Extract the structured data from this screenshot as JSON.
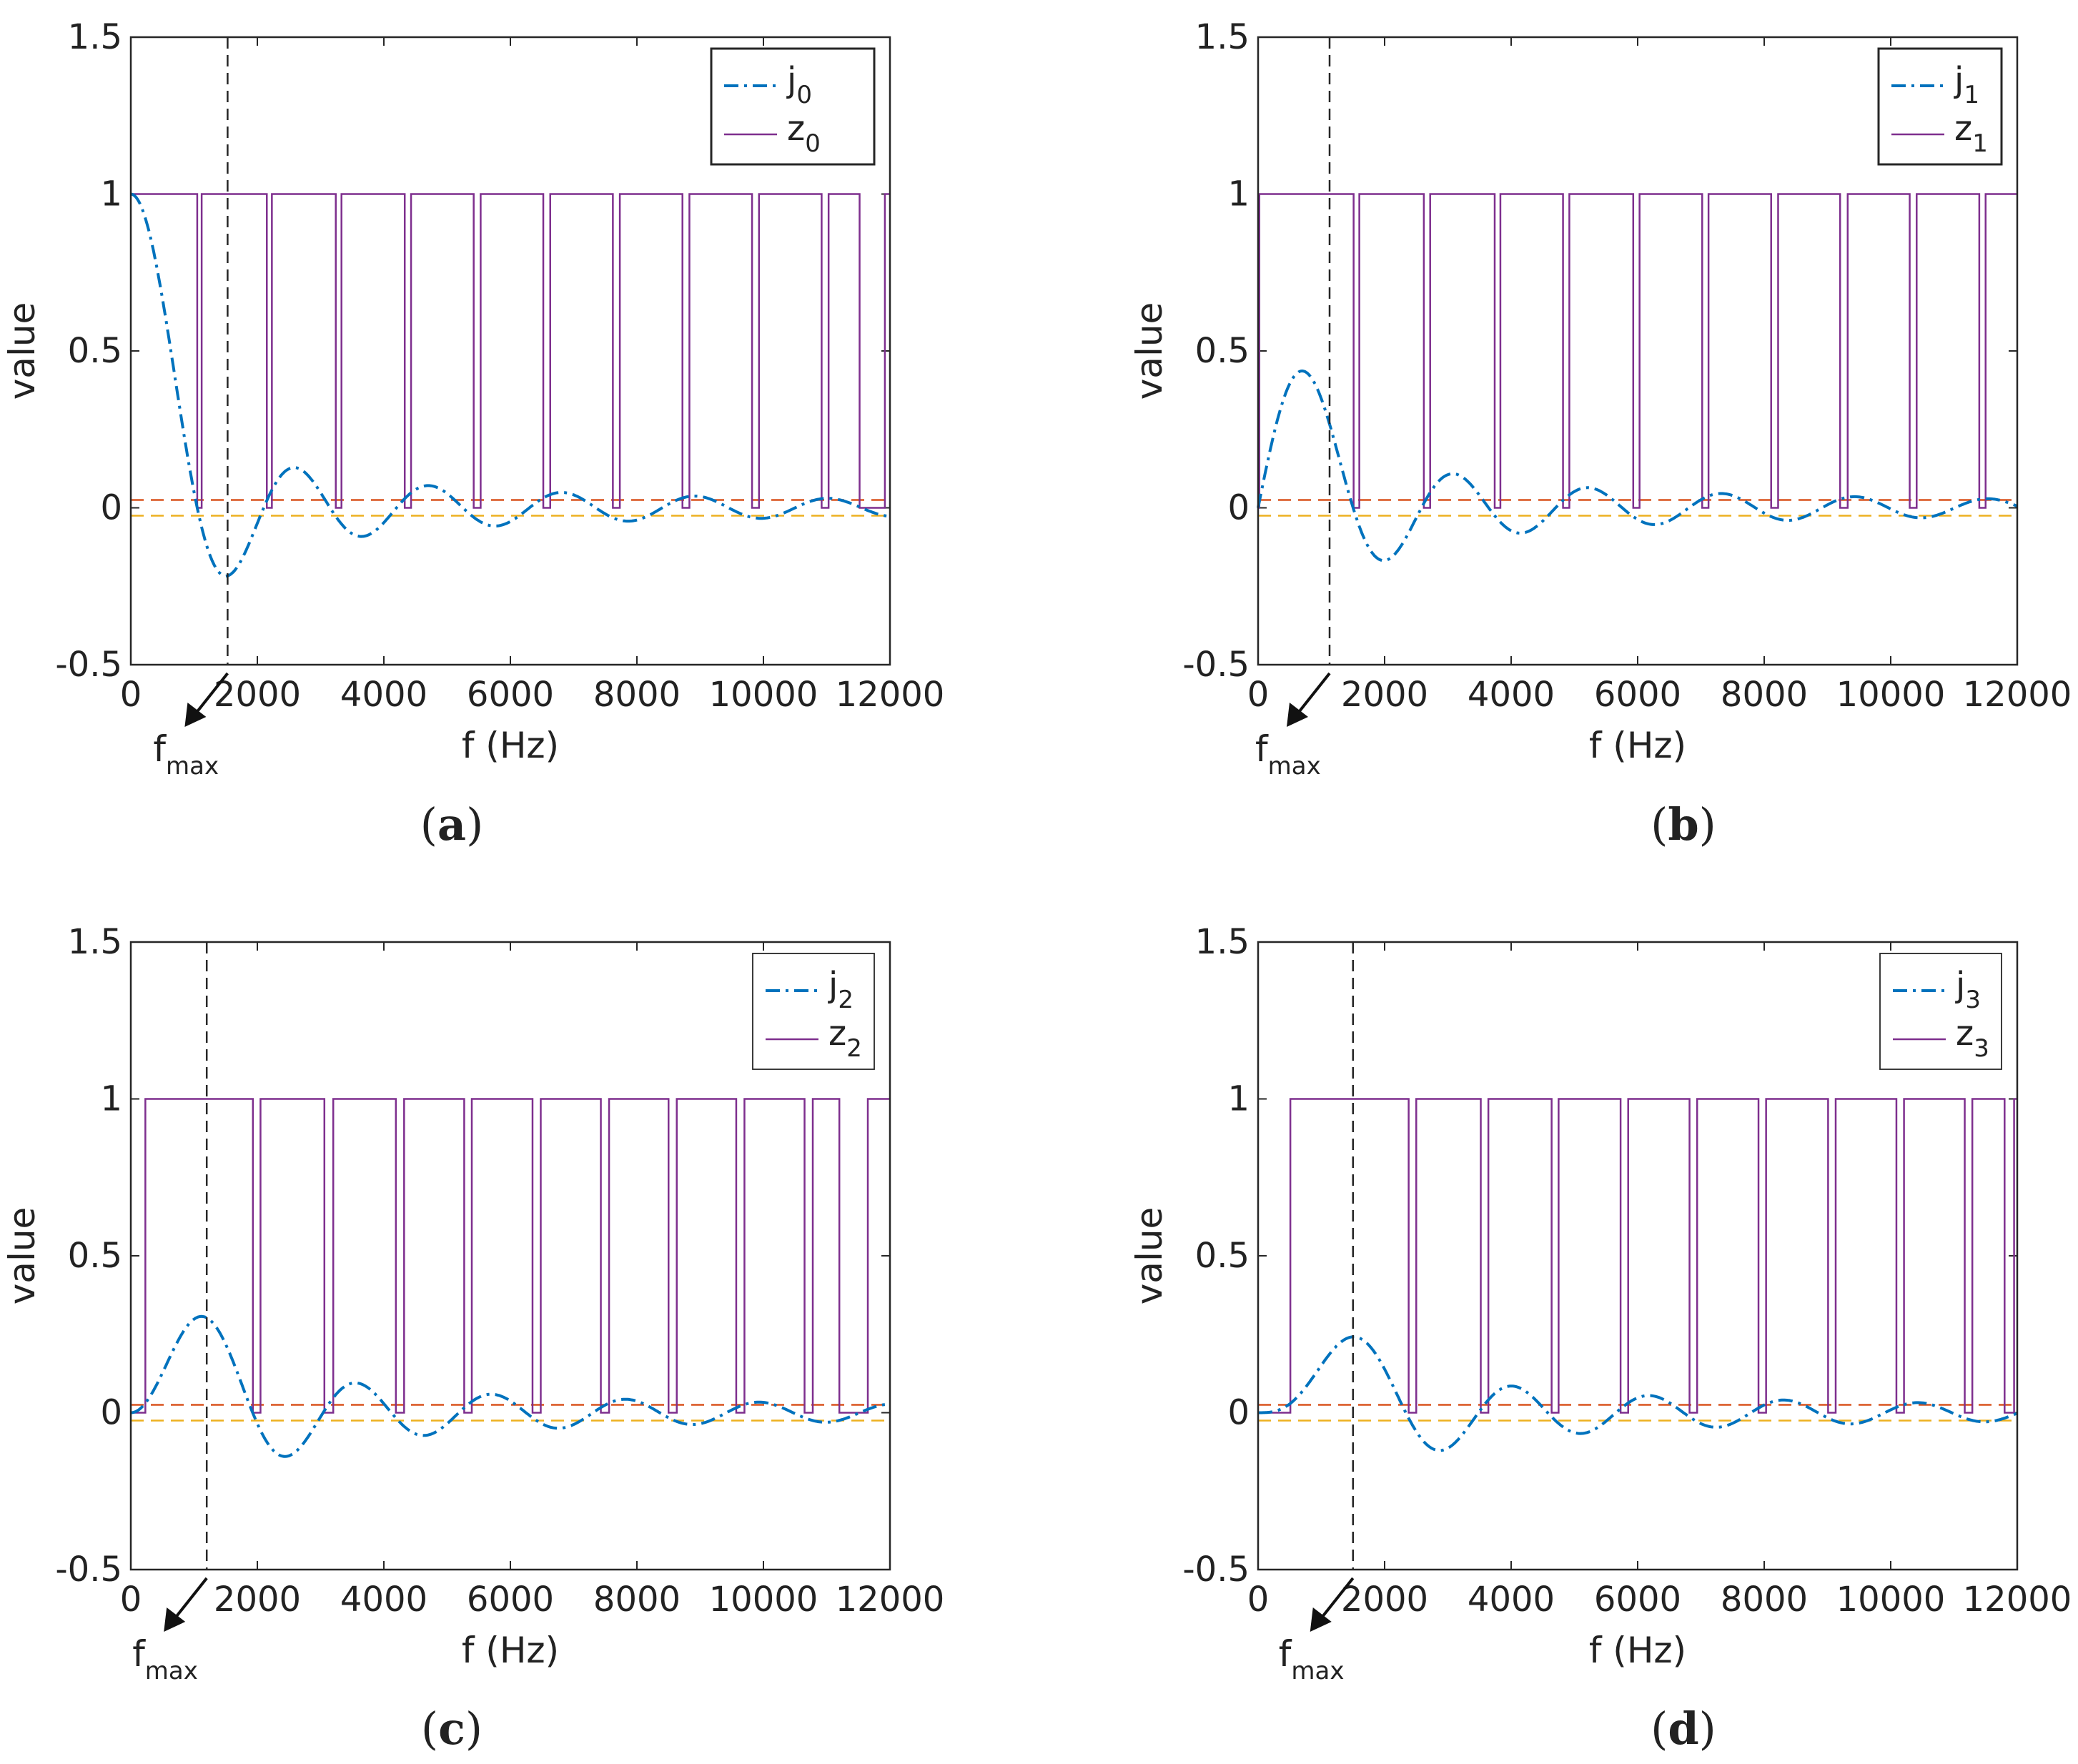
{
  "chart_data": [
    {
      "type": "line",
      "panel": "a",
      "caption": "a",
      "xlabel": "f (Hz)",
      "ylabel": "value",
      "xlim": [
        0,
        12000
      ],
      "ylim": [
        -0.5,
        1.5
      ],
      "xticks": [
        "0",
        "2000",
        "4000",
        "6000",
        "8000",
        "10000",
        "12000"
      ],
      "yticks": [
        "-0.5",
        "0",
        "0.5",
        "1",
        "1.5"
      ],
      "order": 0,
      "fmax": 1530,
      "fmax_label": "f",
      "fmax_sub": "max",
      "thresholds": {
        "upper": 0.025,
        "lower": -0.025,
        "upper_color": "#d9531e",
        "lower_color": "#edb120"
      },
      "series": [
        {
          "name": "j",
          "sub": "0",
          "style": "dash-dot",
          "color": "#0072bd",
          "function": "spherical_bessel_j0"
        },
        {
          "name": "z",
          "sub": "0",
          "style": "solid",
          "color": "#7e2f8e",
          "steps": [
            [
              0,
              1
            ],
            [
              1050,
              0
            ],
            [
              1120,
              1
            ],
            [
              2150,
              0
            ],
            [
              2230,
              1
            ],
            [
              3240,
              0
            ],
            [
              3330,
              1
            ],
            [
              4330,
              0
            ],
            [
              4430,
              1
            ],
            [
              5420,
              0
            ],
            [
              5530,
              1
            ],
            [
              6520,
              0
            ],
            [
              6630,
              1
            ],
            [
              7620,
              0
            ],
            [
              7730,
              1
            ],
            [
              8720,
              0
            ],
            [
              8830,
              1
            ],
            [
              9820,
              0
            ],
            [
              9930,
              1
            ],
            [
              10920,
              0
            ],
            [
              11030,
              1
            ],
            [
              11520,
              0
            ],
            [
              11920,
              1
            ],
            [
              12000,
              1
            ]
          ]
        }
      ]
    },
    {
      "type": "line",
      "panel": "b",
      "caption": "b",
      "xlabel": "f (Hz)",
      "ylabel": "value",
      "xlim": [
        0,
        12000
      ],
      "ylim": [
        -0.5,
        1.5
      ],
      "xticks": [
        "0",
        "2000",
        "4000",
        "6000",
        "8000",
        "10000",
        "12000"
      ],
      "yticks": [
        "-0.5",
        "0",
        "0.5",
        "1",
        "1.5"
      ],
      "order": 1,
      "fmax": 1130,
      "fmax_label": "f",
      "fmax_sub": "max",
      "thresholds": {
        "upper": 0.025,
        "lower": -0.025,
        "upper_color": "#d9531e",
        "lower_color": "#edb120"
      },
      "series": [
        {
          "name": "j",
          "sub": "1",
          "style": "dash-dot",
          "color": "#0072bd",
          "function": "spherical_bessel_j1"
        },
        {
          "name": "z",
          "sub": "1",
          "style": "solid",
          "color": "#7e2f8e",
          "steps": [
            [
              0,
              0
            ],
            [
              20,
              1
            ],
            [
              1510,
              0
            ],
            [
              1600,
              1
            ],
            [
              2620,
              0
            ],
            [
              2720,
              1
            ],
            [
              3740,
              0
            ],
            [
              3830,
              1
            ],
            [
              4820,
              0
            ],
            [
              4920,
              1
            ],
            [
              5930,
              0
            ],
            [
              6030,
              1
            ],
            [
              7020,
              0
            ],
            [
              7120,
              1
            ],
            [
              8110,
              0
            ],
            [
              8220,
              1
            ],
            [
              9200,
              0
            ],
            [
              9320,
              1
            ],
            [
              10300,
              0
            ],
            [
              10410,
              1
            ],
            [
              11400,
              0
            ],
            [
              11500,
              1
            ],
            [
              12000,
              1
            ]
          ]
        }
      ]
    },
    {
      "type": "line",
      "panel": "c",
      "caption": "c",
      "xlabel": "f (Hz)",
      "ylabel": "value",
      "xlim": [
        0,
        12000
      ],
      "ylim": [
        -0.5,
        1.5
      ],
      "xticks": [
        "0",
        "2000",
        "4000",
        "6000",
        "8000",
        "10000",
        "12000"
      ],
      "yticks": [
        "-0.5",
        "0",
        "0.5",
        "1",
        "1.5"
      ],
      "order": 2,
      "fmax": 1200,
      "fmax_label": "f",
      "fmax_sub": "max",
      "thresholds": {
        "upper": 0.025,
        "lower": -0.025,
        "upper_color": "#d9531e",
        "lower_color": "#edb120"
      },
      "series": [
        {
          "name": "j",
          "sub": "2",
          "style": "dash-dot",
          "color": "#0072bd",
          "function": "spherical_bessel_j2"
        },
        {
          "name": "z",
          "sub": "2",
          "style": "solid",
          "color": "#7e2f8e",
          "steps": [
            [
              0,
              0
            ],
            [
              230,
              1
            ],
            [
              1930,
              0
            ],
            [
              2050,
              1
            ],
            [
              3060,
              0
            ],
            [
              3200,
              1
            ],
            [
              4190,
              0
            ],
            [
              4320,
              1
            ],
            [
              5270,
              0
            ],
            [
              5390,
              1
            ],
            [
              6350,
              0
            ],
            [
              6480,
              1
            ],
            [
              7430,
              0
            ],
            [
              7560,
              1
            ],
            [
              8500,
              0
            ],
            [
              8630,
              1
            ],
            [
              9570,
              0
            ],
            [
              9700,
              1
            ],
            [
              10650,
              0
            ],
            [
              10780,
              1
            ],
            [
              11200,
              0
            ],
            [
              11650,
              1
            ],
            [
              12000,
              1
            ]
          ]
        }
      ]
    },
    {
      "type": "line",
      "panel": "d",
      "caption": "d",
      "xlabel": "f (Hz)",
      "ylabel": "value",
      "xlim": [
        0,
        12000
      ],
      "ylim": [
        -0.5,
        1.5
      ],
      "xticks": [
        "0",
        "2000",
        "4000",
        "6000",
        "8000",
        "10000",
        "12000"
      ],
      "yticks": [
        "-0.5",
        "0",
        "0.5",
        "1",
        "1.5"
      ],
      "order": 3,
      "fmax": 1500,
      "fmax_label": "f",
      "fmax_sub": "max",
      "thresholds": {
        "upper": 0.025,
        "lower": -0.025,
        "upper_color": "#d9531e",
        "lower_color": "#edb120"
      },
      "series": [
        {
          "name": "j",
          "sub": "3",
          "style": "dash-dot",
          "color": "#0072bd",
          "function": "spherical_bessel_j3"
        },
        {
          "name": "z",
          "sub": "3",
          "style": "solid",
          "color": "#7e2f8e",
          "steps": [
            [
              0,
              0
            ],
            [
              510,
              1
            ],
            [
              2380,
              0
            ],
            [
              2500,
              1
            ],
            [
              3520,
              0
            ],
            [
              3640,
              1
            ],
            [
              4640,
              0
            ],
            [
              4750,
              1
            ],
            [
              5730,
              0
            ],
            [
              5850,
              1
            ],
            [
              6820,
              0
            ],
            [
              6940,
              1
            ],
            [
              7910,
              0
            ],
            [
              8030,
              1
            ],
            [
              9010,
              0
            ],
            [
              9130,
              1
            ],
            [
              10090,
              0
            ],
            [
              10210,
              1
            ],
            [
              11170,
              0
            ],
            [
              11290,
              1
            ],
            [
              11800,
              0
            ],
            [
              11950,
              1
            ],
            [
              12000,
              1
            ]
          ]
        }
      ]
    }
  ]
}
